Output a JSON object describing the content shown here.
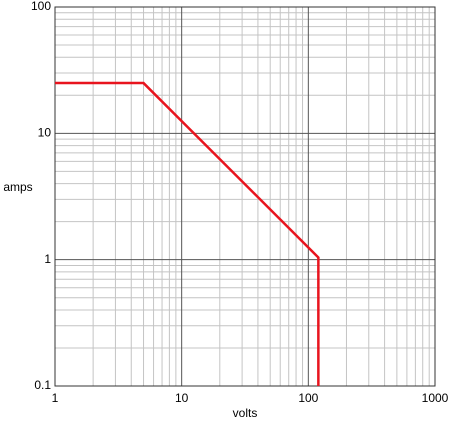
{
  "chart_data": {
    "type": "line",
    "x_label": "volts",
    "y_label": "amps",
    "x": [
      1,
      5,
      120,
      120
    ],
    "series": [
      {
        "color": "#e8141e",
        "values": [
          25,
          25,
          1.04,
          0.1
        ]
      }
    ],
    "xscale": "log",
    "yscale": "log",
    "xlim": [
      1,
      1000
    ],
    "ylim": [
      0.1,
      100
    ],
    "xticks": [
      1,
      10,
      100,
      1000
    ],
    "yticks": [
      0.1,
      1,
      10,
      100
    ],
    "grid": true,
    "minor_grid": true
  }
}
